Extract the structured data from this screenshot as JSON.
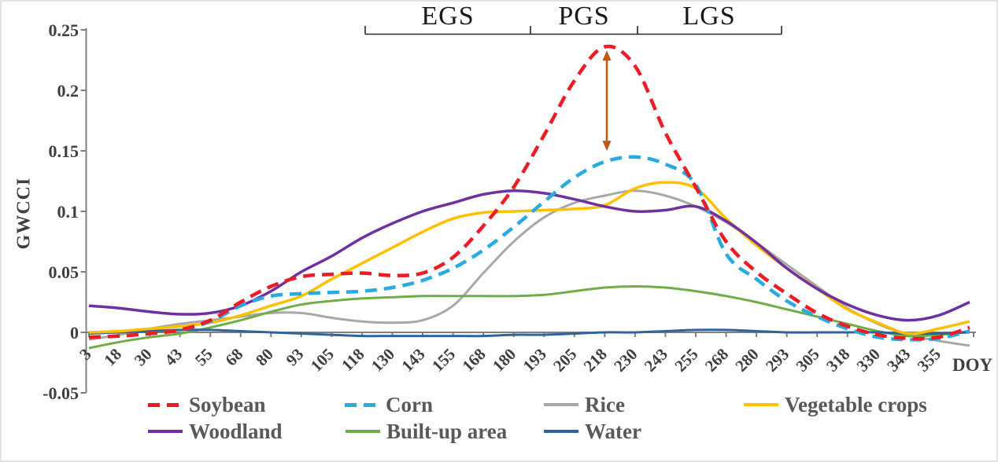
{
  "figure": {
    "y_axis_label": "GWCCI",
    "x_axis_label": "DOY"
  },
  "season_annotation": {
    "labels": [
      "EGS",
      "PGS",
      "LGS"
    ],
    "boundaries_doy": [
      118,
      187,
      231,
      289
    ]
  },
  "peak_arrow": {
    "description": "double-headed arrow between Soybean peak and Corn peak",
    "doy": 218,
    "top_value": 0.235,
    "bottom_value": 0.148,
    "color": "#C0571B"
  },
  "chart_data": {
    "type": "line",
    "title": "",
    "xlabel": "DOY",
    "ylabel": "GWCCI",
    "x_tick_labels": [
      "3",
      "18",
      "30",
      "43",
      "55",
      "68",
      "80",
      "93",
      "105",
      "118",
      "130",
      "143",
      "155",
      "168",
      "180",
      "193",
      "205",
      "218",
      "230",
      "243",
      "255",
      "268",
      "280",
      "293",
      "305",
      "318",
      "330",
      "343",
      "355"
    ],
    "x_sampled_doys": [
      3,
      18,
      30,
      43,
      55,
      68,
      80,
      93,
      105,
      118,
      130,
      143,
      155,
      168,
      180,
      193,
      205,
      218,
      230,
      243,
      255,
      268,
      280,
      293,
      305,
      318,
      330,
      343,
      355,
      366
    ],
    "note": "values sampled at x-axis ticks; final sample is the curve end at the right edge of the plot (~DOY 366)",
    "y_tick_labels": [
      "-0.05",
      "0",
      "0.05",
      "0.1",
      "0.15",
      "0.2",
      "0.25"
    ],
    "y_tick_values": [
      -0.05,
      0,
      0.05,
      0.1,
      0.15,
      0.2,
      0.25
    ],
    "ylim": [
      -0.05,
      0.25
    ],
    "grid": false,
    "legend_position": "bottom",
    "series": [
      {
        "name": "Soybean",
        "color": "#EC1C24",
        "style": "dashed",
        "width": 4.5,
        "values": [
          -0.004,
          -0.003,
          -0.001,
          0.002,
          0.01,
          0.025,
          0.038,
          0.046,
          0.048,
          0.049,
          0.047,
          0.049,
          0.062,
          0.088,
          0.12,
          0.163,
          0.208,
          0.236,
          0.22,
          0.165,
          0.12,
          0.075,
          0.05,
          0.032,
          0.016,
          0.005,
          -0.002,
          -0.005,
          -0.004,
          0.004
        ]
      },
      {
        "name": "Corn",
        "color": "#29ABE2",
        "style": "dashed",
        "width": 4.5,
        "values": [
          -0.004,
          -0.003,
          -0.001,
          0.002,
          0.009,
          0.022,
          0.03,
          0.032,
          0.033,
          0.034,
          0.037,
          0.043,
          0.053,
          0.068,
          0.087,
          0.108,
          0.128,
          0.141,
          0.145,
          0.139,
          0.122,
          0.065,
          0.044,
          0.026,
          0.013,
          0.003,
          -0.004,
          -0.006,
          -0.005,
          0.001
        ]
      },
      {
        "name": "Rice",
        "color": "#A8A8A8",
        "style": "solid",
        "width": 3,
        "values": [
          -0.006,
          -0.002,
          0.003,
          0.007,
          0.01,
          0.013,
          0.016,
          0.016,
          0.012,
          0.009,
          0.008,
          0.01,
          0.022,
          0.049,
          0.075,
          0.095,
          0.107,
          0.113,
          0.117,
          0.113,
          0.104,
          0.091,
          0.074,
          0.056,
          0.038,
          0.02,
          0.007,
          -0.002,
          -0.007,
          -0.011
        ]
      },
      {
        "name": "Vegetable crops",
        "color": "#FFC000",
        "style": "solid",
        "width": 3.5,
        "values": [
          0.0,
          0.001,
          0.003,
          0.005,
          0.008,
          0.014,
          0.022,
          0.03,
          0.044,
          0.057,
          0.07,
          0.083,
          0.094,
          0.099,
          0.1,
          0.101,
          0.102,
          0.105,
          0.119,
          0.124,
          0.119,
          0.094,
          0.072,
          0.053,
          0.036,
          0.019,
          0.008,
          -0.001,
          0.003,
          0.009
        ]
      },
      {
        "name": "Woodland",
        "color": "#7030A0",
        "style": "solid",
        "width": 3.5,
        "values": [
          0.022,
          0.02,
          0.017,
          0.015,
          0.016,
          0.022,
          0.034,
          0.05,
          0.063,
          0.078,
          0.09,
          0.1,
          0.107,
          0.114,
          0.117,
          0.115,
          0.11,
          0.104,
          0.1,
          0.101,
          0.104,
          0.092,
          0.074,
          0.053,
          0.036,
          0.023,
          0.014,
          0.01,
          0.014,
          0.025
        ]
      },
      {
        "name": "Built-up area",
        "color": "#70AD47",
        "style": "solid",
        "width": 3,
        "values": [
          -0.013,
          -0.008,
          -0.004,
          -0.001,
          0.004,
          0.01,
          0.017,
          0.023,
          0.026,
          0.028,
          0.029,
          0.03,
          0.03,
          0.03,
          0.03,
          0.031,
          0.034,
          0.037,
          0.038,
          0.037,
          0.034,
          0.03,
          0.025,
          0.019,
          0.013,
          0.007,
          0.001,
          -0.003,
          -0.002,
          0.001
        ]
      },
      {
        "name": "Water",
        "color": "#30649B",
        "style": "solid",
        "width": 3,
        "values": [
          -0.001,
          0.0,
          0.001,
          0.002,
          0.002,
          0.001,
          0.0,
          -0.001,
          -0.002,
          -0.003,
          -0.003,
          -0.003,
          -0.003,
          -0.003,
          -0.002,
          -0.002,
          -0.001,
          0.0,
          0.0,
          0.001,
          0.002,
          0.002,
          0.001,
          0.0,
          0.0,
          0.0,
          0.0,
          -0.001,
          -0.001,
          0.0
        ]
      }
    ]
  },
  "legend": {
    "rows": [
      [
        0,
        1,
        2,
        3
      ],
      [
        4,
        5,
        6
      ]
    ]
  }
}
